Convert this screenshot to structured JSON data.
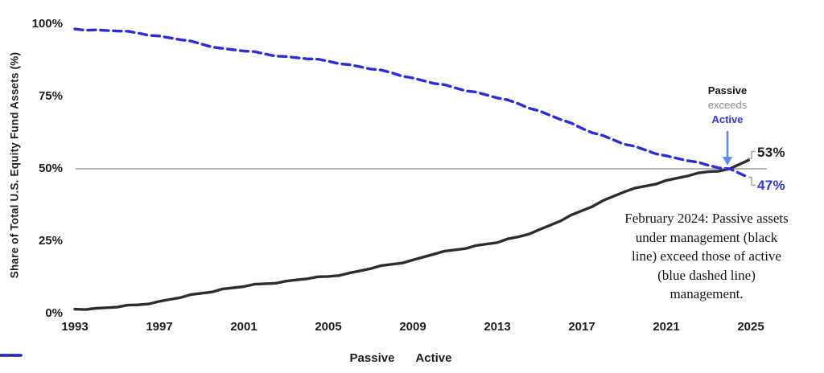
{
  "figure": {
    "y_axis_title": "Share of Total U.S. Equity Fund Assets (%)",
    "y_ticks": [
      "100%",
      "75%",
      "50%",
      "25%",
      "0%"
    ],
    "x_ticks": [
      "1993",
      "1997",
      "2001",
      "2005",
      "2009",
      "2013",
      "2017",
      "2021",
      "2025"
    ],
    "legend": {
      "passive": "Passive",
      "active": "Active"
    },
    "callout": {
      "line1": "Passive",
      "line2": "exceeds",
      "line3": "Active"
    },
    "end_labels": {
      "passive": "53%",
      "active": "47%"
    },
    "note_lines": [
      "February 2024: Passive assets",
      "under management (black",
      "line) exceed those of active",
      "(blue dashed line)",
      "management."
    ],
    "colors": {
      "passive_line": "#2d2d2d",
      "active_line": "#2b2be0",
      "blue_text": "#2b34e2",
      "arrow": "#5b8bf0",
      "gray_text": "#8a8a8a",
      "gridline": "#9a9a9a",
      "connector": "#a6a6a6"
    }
  },
  "chart_data": {
    "type": "line",
    "title": "",
    "xlabel": "",
    "ylabel": "Share of Total U.S. Equity Fund Assets (%)",
    "x_range": [
      1993,
      2025
    ],
    "ylim": [
      0,
      100
    ],
    "grid": "single horizontal reference line at 50%",
    "legend_position": "bottom-center",
    "x": [
      1993,
      1994,
      1995,
      1996,
      1997,
      1998,
      1999,
      2000,
      2001,
      2002,
      2003,
      2004,
      2005,
      2006,
      2007,
      2008,
      2009,
      2010,
      2011,
      2012,
      2013,
      2014,
      2015,
      2016,
      2017,
      2018,
      2019,
      2020,
      2021,
      2022,
      2023,
      2024,
      2024.9
    ],
    "series": [
      {
        "name": "Passive",
        "style": "solid black",
        "values": [
          1.5,
          1.8,
          2.2,
          3.0,
          4.2,
          5.5,
          7.0,
          8.5,
          9.3,
          10.3,
          11.2,
          12.0,
          12.8,
          14.0,
          15.5,
          17.0,
          18.5,
          20.5,
          22.0,
          23.5,
          24.5,
          26.5,
          29.0,
          32.0,
          35.5,
          39.0,
          42.0,
          44.0,
          46.0,
          47.5,
          49.0,
          50.0,
          53.0
        ]
      },
      {
        "name": "Active",
        "style": "dashed blue",
        "values": [
          98.3,
          98.0,
          97.6,
          96.9,
          95.9,
          94.6,
          93.1,
          91.6,
          90.7,
          89.7,
          88.8,
          88.0,
          87.2,
          86.0,
          84.5,
          83.2,
          81.4,
          79.5,
          78.0,
          76.5,
          74.5,
          72.5,
          70.0,
          67.0,
          64.0,
          61.5,
          58.5,
          56.5,
          54.5,
          52.8,
          51.2,
          50.0,
          47.0
        ]
      }
    ],
    "annotations": [
      {
        "type": "arrow-callout",
        "text": "Passive exceeds Active",
        "x": 2024.1,
        "y": 50
      },
      {
        "type": "end-label",
        "series": "Passive",
        "text": "53%"
      },
      {
        "type": "end-label",
        "series": "Active",
        "text": "47%"
      },
      {
        "type": "note",
        "text": "February 2024: Passive assets under management (black line) exceed those of active (blue dashed line) management."
      }
    ]
  }
}
